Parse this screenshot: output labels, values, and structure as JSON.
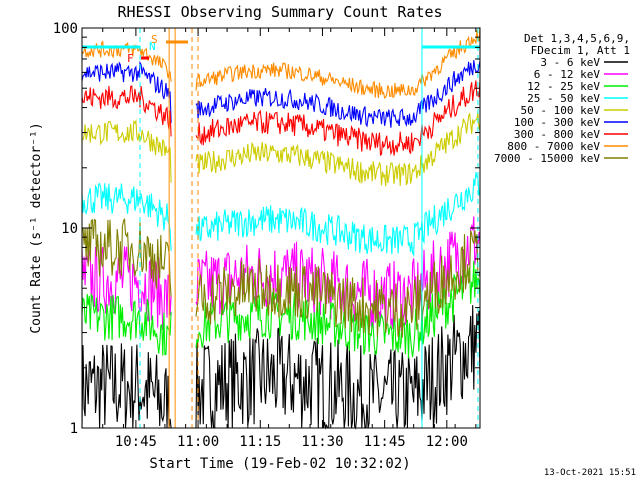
{
  "chart_data": {
    "type": "line",
    "title": "RHESSI Observing Summary Count Rates",
    "xlabel": "Start Time (19-Feb-02 10:32:02)",
    "ylabel": "Count Rate (s⁻¹ detector⁻¹)",
    "yscale": "log",
    "ylim": [
      1,
      100
    ],
    "xlim_minutes": [
      0,
      96
    ],
    "x_ticks": [
      {
        "label": "10:45",
        "minute": 13
      },
      {
        "label": "11:00",
        "minute": 28
      },
      {
        "label": "11:15",
        "minute": 43
      },
      {
        "label": "11:30",
        "minute": 58
      },
      {
        "label": "11:45",
        "minute": 73
      },
      {
        "label": "12:00",
        "minute": 88
      }
    ],
    "y_ticks": [
      {
        "label": "1",
        "value": 1
      },
      {
        "label": "10",
        "value": 10
      },
      {
        "label": "100",
        "value": 100
      }
    ],
    "legend_header": [
      "Det 1,3,4,5,6,9,",
      "FDecim 1, Att 1"
    ],
    "legend_position": "right",
    "series": [
      {
        "name": "3 - 6 keV",
        "color": "#000000",
        "base": 1.6,
        "noise": 0.25,
        "pre": 1.6
      },
      {
        "name": "6 - 12 keV",
        "color": "#ff00ff",
        "base": 5.2,
        "noise": 0.18,
        "pre": 5.5
      },
      {
        "name": "12 - 25 keV",
        "color": "#00ee00",
        "base": 3.3,
        "noise": 0.12,
        "pre": 3.6
      },
      {
        "name": "25 - 50 keV",
        "color": "#00ffff",
        "base": 9.8,
        "noise": 0.08,
        "pre": 14
      },
      {
        "name": "50 - 100 keV",
        "color": "#cccc00",
        "base": 21,
        "noise": 0.06,
        "pre": 30
      },
      {
        "name": "100 - 300 keV",
        "color": "#0000ff",
        "base": 40,
        "noise": 0.05,
        "pre": 60
      },
      {
        "name": "300 - 800 keV",
        "color": "#ff0000",
        "base": 30,
        "noise": 0.06,
        "pre": 45
      },
      {
        "name": "800 - 7000 keV",
        "color": "#ff8c00",
        "base": 55,
        "noise": 0.04,
        "pre": 78
      },
      {
        "name": "7000 - 15000 keV",
        "color": "#808000",
        "base": 4.5,
        "noise": 0.15,
        "pre": 8
      }
    ],
    "flags": {
      "N": {
        "label": "N",
        "color": "#00ffff",
        "start_minute": 0,
        "end_minute": 14
      },
      "N2": {
        "label": "",
        "color": "#00ffff",
        "start_minute": 82,
        "end_minute": 96
      },
      "F": {
        "label": "F",
        "color": "#ff0000"
      },
      "S": {
        "label": "S",
        "color": "#ff8c00",
        "start_minute": 21,
        "end_minute": 26
      }
    },
    "footer_date": "13-Oct-2021 15:51"
  }
}
